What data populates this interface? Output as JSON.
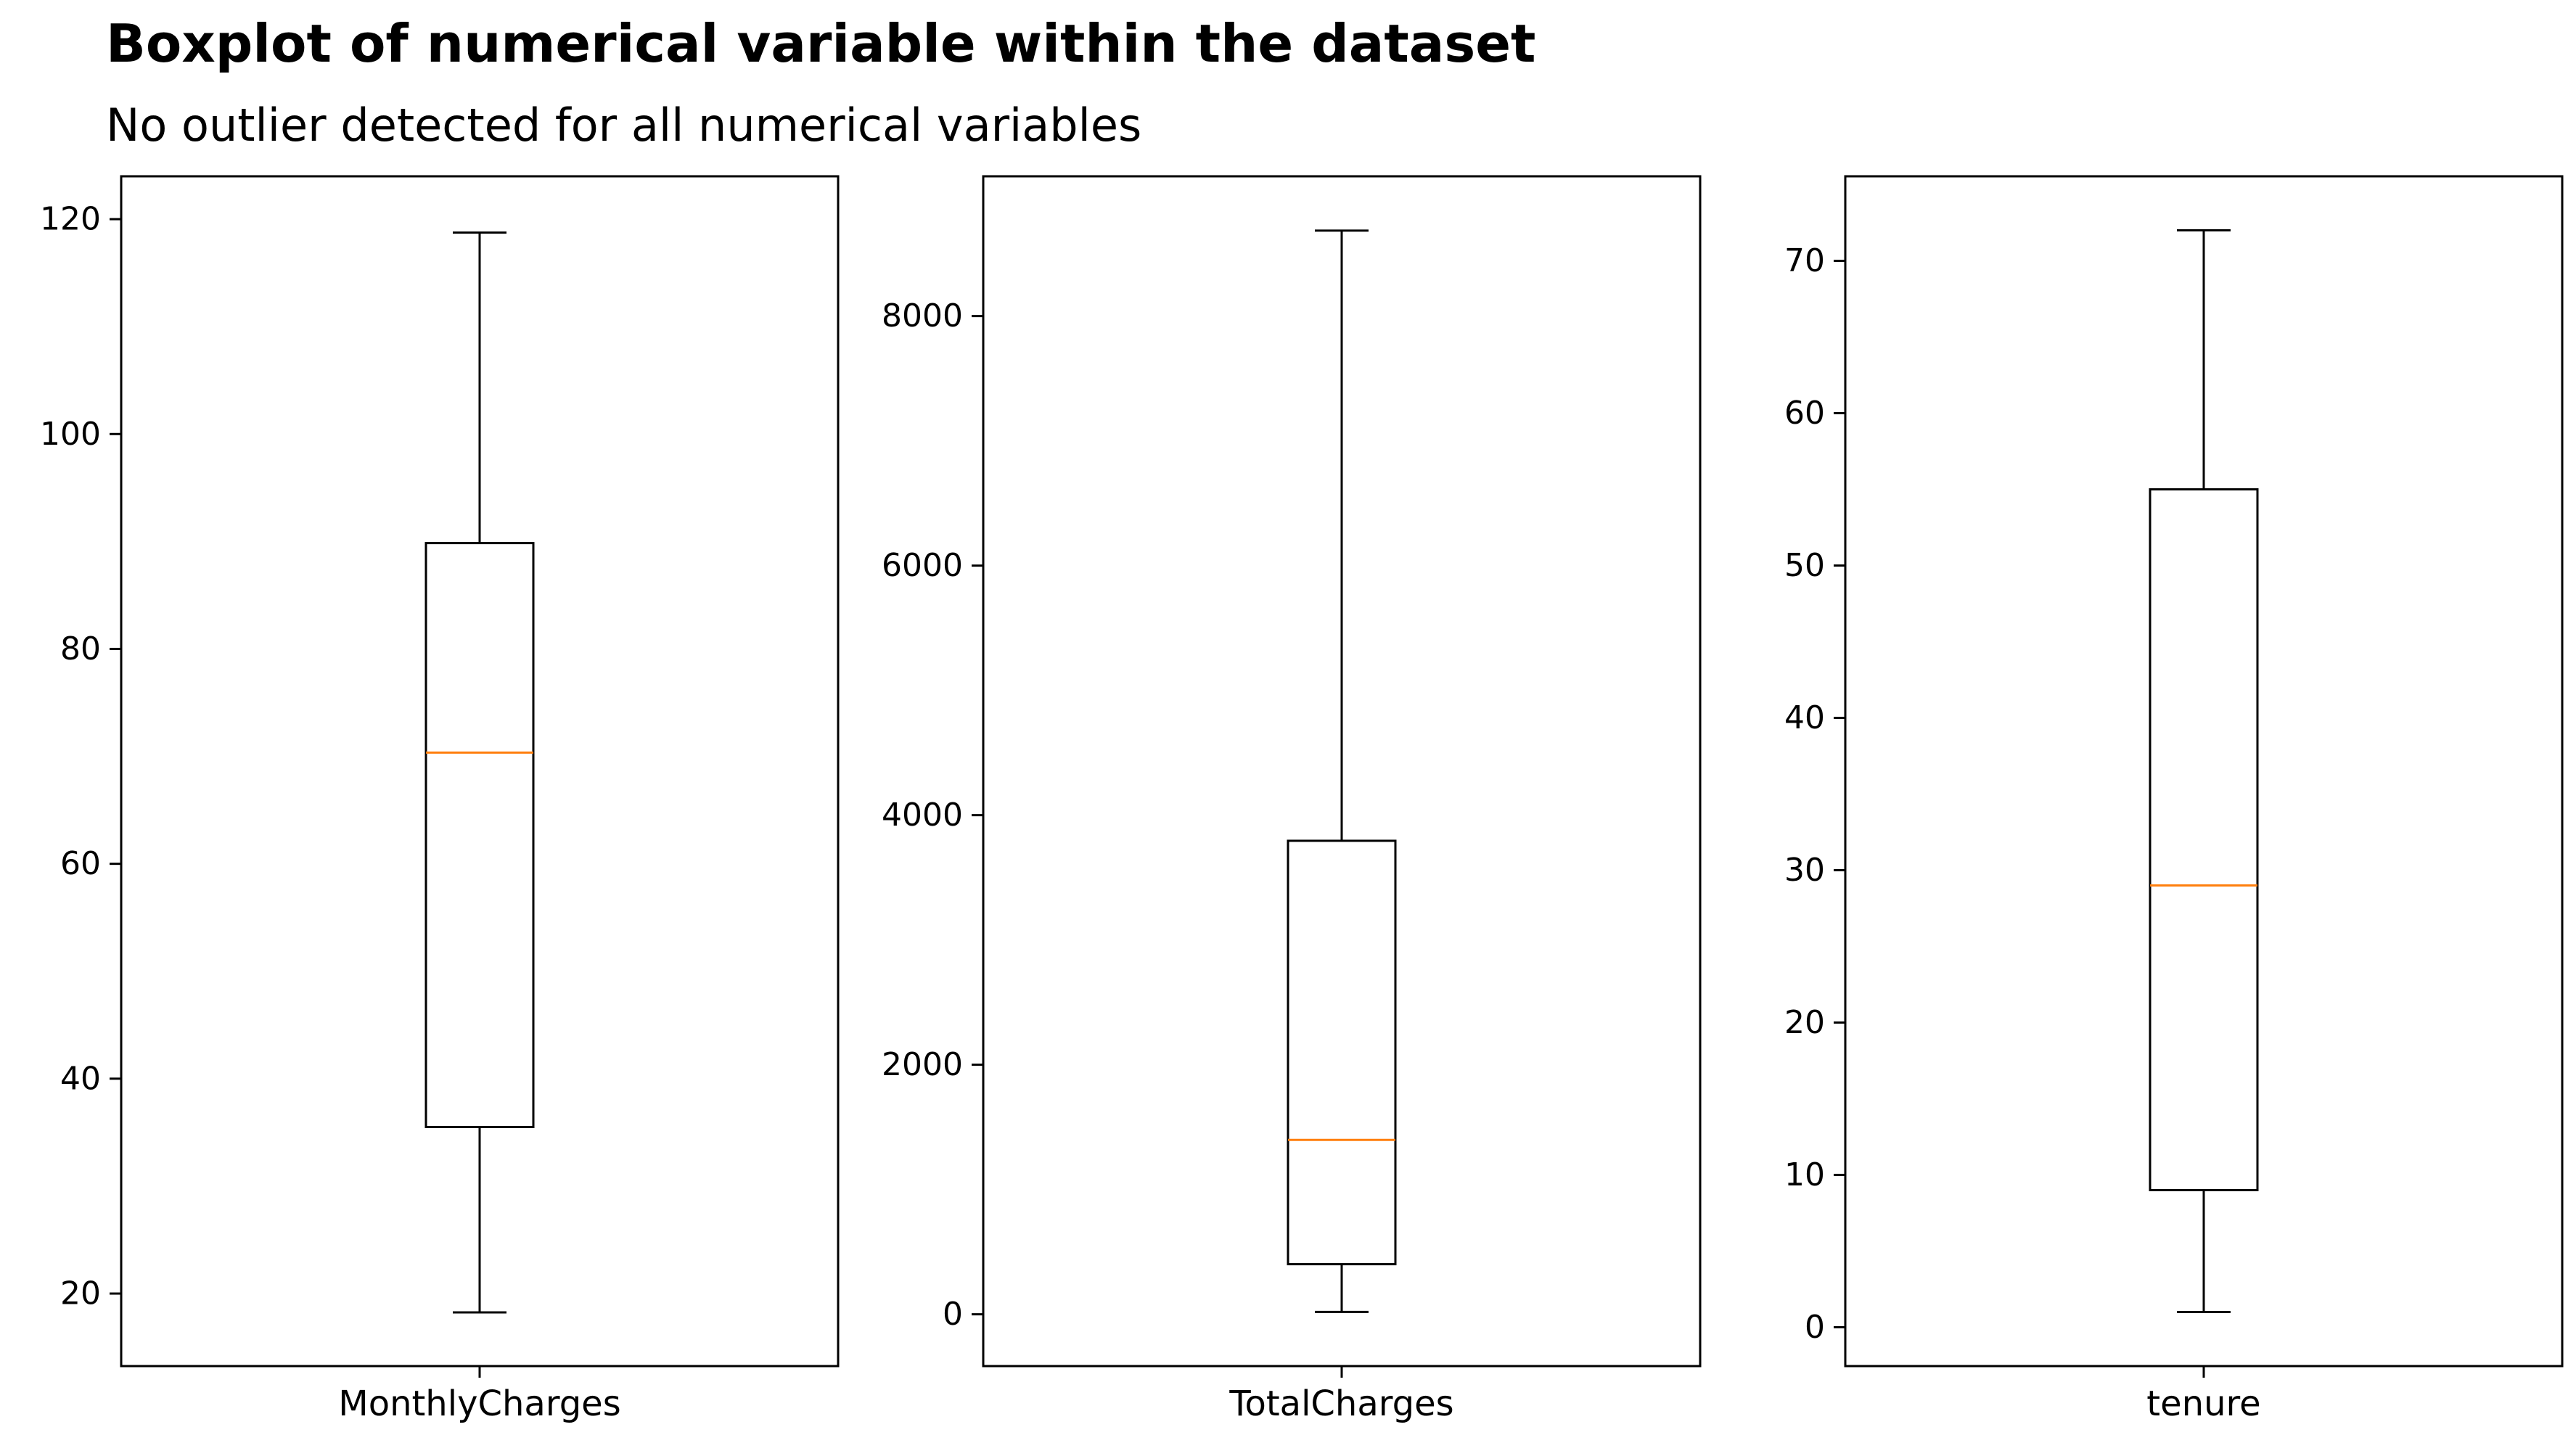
{
  "title": "Boxplot of numerical variable within the dataset",
  "subtitle": "No outlier detected for all numerical variables",
  "colors": {
    "box": "#000000",
    "median": "#ff7f0e",
    "background": "#ffffff"
  },
  "chart_data": [
    {
      "type": "box",
      "xlabel": "MonthlyCharges",
      "ylim": [
        13.25,
        123.99
      ],
      "yticks": [
        20,
        40,
        60,
        80,
        100,
        120
      ],
      "tick_labels": [
        "20",
        "40",
        "60",
        "80",
        "100",
        "120"
      ],
      "stats": {
        "whislo": 18.25,
        "q1": 35.5,
        "median": 70.35,
        "q3": 89.85,
        "whishi": 118.75
      },
      "grid": false
    },
    {
      "type": "box",
      "xlabel": "TotalCharges",
      "ylim": [
        -415,
        9120
      ],
      "yticks": [
        0,
        2000,
        4000,
        6000,
        8000
      ],
      "tick_labels": [
        "0",
        "2000",
        "4000",
        "6000",
        "8000"
      ],
      "stats": {
        "whislo": 18.8,
        "q1": 401.45,
        "median": 1397.5,
        "q3": 3794.7,
        "whishi": 8684.8
      },
      "grid": false
    },
    {
      "type": "box",
      "xlabel": "tenure",
      "ylim": [
        -2.55,
        75.55
      ],
      "yticks": [
        0,
        10,
        20,
        30,
        40,
        50,
        60,
        70
      ],
      "tick_labels": [
        "0",
        "10",
        "20",
        "30",
        "40",
        "50",
        "60",
        "70"
      ],
      "stats": {
        "whislo": 1,
        "q1": 9,
        "median": 29,
        "q3": 55,
        "whishi": 72
      },
      "grid": false
    }
  ]
}
